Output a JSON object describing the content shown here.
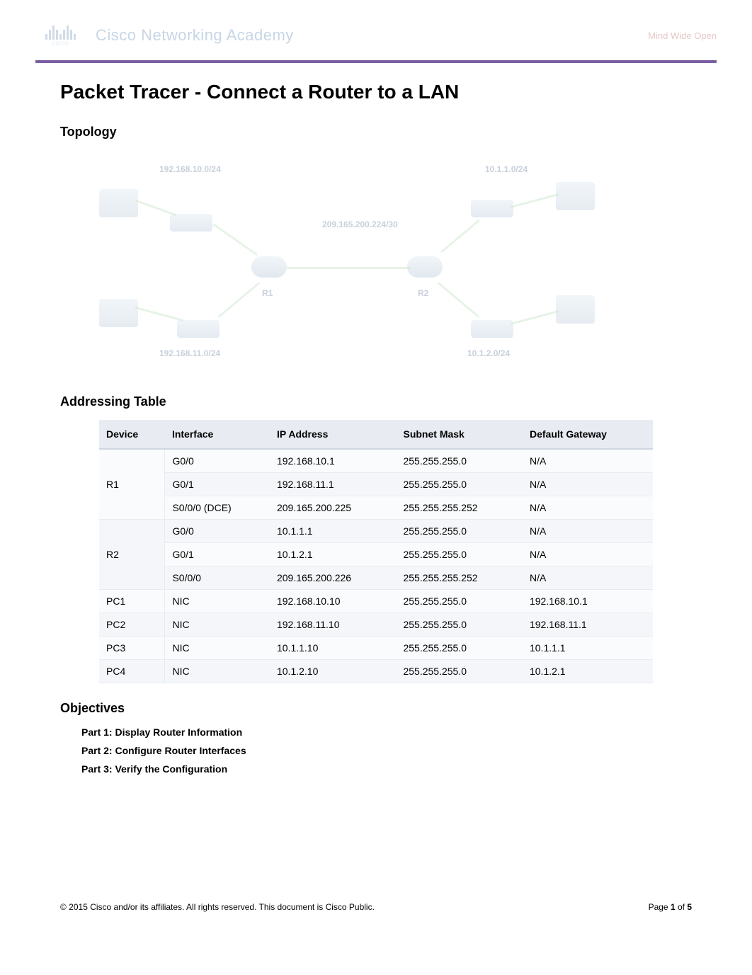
{
  "header": {
    "logo_text": "cisco",
    "academy_text": "Cisco Networking Academy",
    "tagline": "Mind Wide Open"
  },
  "title": "Packet Tracer - Connect a Router to a LAN",
  "sections": {
    "topology": "Topology",
    "addressing": "Addressing Table",
    "objectives": "Objectives"
  },
  "topology": {
    "labels": {
      "net1": "192.168.10.0/24",
      "net2": "10.1.1.0/24",
      "net3": "192.168.11.0/24",
      "net4": "10.1.2.0/24",
      "wan": "209.165.200.224/30",
      "r1": "R1",
      "r2": "R2"
    },
    "colors": {
      "device_fill": "#d8e4ed",
      "link": "#cfe8cf",
      "label": "#c8d0db"
    }
  },
  "addressing_table": {
    "columns": [
      "Device",
      "Interface",
      "IP Address",
      "Subnet Mask",
      "Default Gateway"
    ],
    "rows": [
      {
        "device": "R1",
        "rowspan": 3,
        "interface": "G0/0",
        "ip": "192.168.10.1",
        "mask": "255.255.255.0",
        "gw": "N/A"
      },
      {
        "device": "",
        "rowspan": 0,
        "interface": "G0/1",
        "ip": "192.168.11.1",
        "mask": "255.255.255.0",
        "gw": "N/A"
      },
      {
        "device": "",
        "rowspan": 0,
        "interface": "S0/0/0 (DCE)",
        "ip": "209.165.200.225",
        "mask": "255.255.255.252",
        "gw": "N/A"
      },
      {
        "device": "R2",
        "rowspan": 3,
        "interface": "G0/0",
        "ip": "10.1.1.1",
        "mask": "255.255.255.0",
        "gw": "N/A"
      },
      {
        "device": "",
        "rowspan": 0,
        "interface": "G0/1",
        "ip": "10.1.2.1",
        "mask": "255.255.255.0",
        "gw": "N/A"
      },
      {
        "device": "",
        "rowspan": 0,
        "interface": "S0/0/0",
        "ip": "209.165.200.226",
        "mask": "255.255.255.252",
        "gw": "N/A"
      },
      {
        "device": "PC1",
        "rowspan": 1,
        "interface": "NIC",
        "ip": "192.168.10.10",
        "mask": "255.255.255.0",
        "gw": "192.168.10.1"
      },
      {
        "device": "PC2",
        "rowspan": 1,
        "interface": "NIC",
        "ip": "192.168.11.10",
        "mask": "255.255.255.0",
        "gw": "192.168.11.1"
      },
      {
        "device": "PC3",
        "rowspan": 1,
        "interface": "NIC",
        "ip": "10.1.1.10",
        "mask": "255.255.255.0",
        "gw": "10.1.1.1"
      },
      {
        "device": "PC4",
        "rowspan": 1,
        "interface": "NIC",
        "ip": "10.1.2.10",
        "mask": "255.255.255.0",
        "gw": "10.1.2.1"
      }
    ],
    "header_bg": "#e8ecf2",
    "row_bg_odd": "#fafbfc",
    "row_bg_even": "#f4f6f9"
  },
  "objectives": [
    "Part 1: Display Router Information",
    "Part 2: Configure Router Interfaces",
    "Part 3: Verify the Configuration"
  ],
  "footer": {
    "copyright": "© 2015 Cisco and/or its affiliates. All rights reserved. This document is Cisco Public.",
    "page_label_pre": "Page ",
    "page_current": "1",
    "page_label_mid": " of ",
    "page_total": "5"
  }
}
